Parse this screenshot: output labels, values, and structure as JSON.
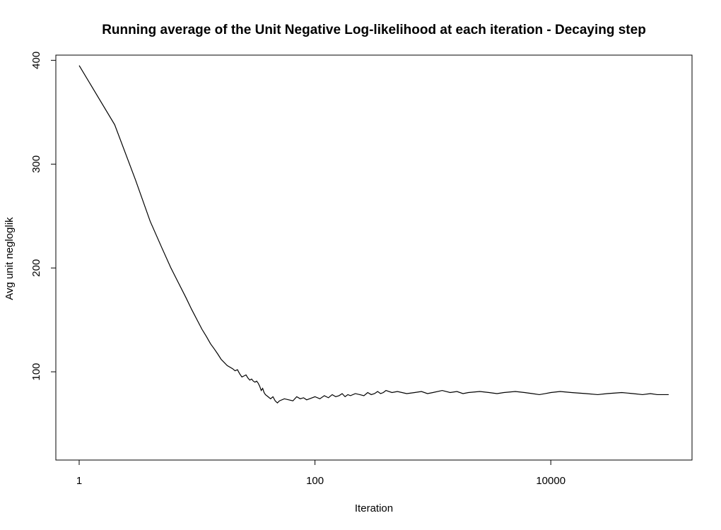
{
  "chart_data": {
    "type": "line",
    "title": "Running average of the Unit Negative Log-likelihood at each iteration - Decaying step",
    "xlabel": "Iteration",
    "ylabel": "Avg unit negloglik",
    "x_scale": "log",
    "xlim": [
      1,
      100000
    ],
    "ylim": [
      15,
      405
    ],
    "x_ticks": [
      1,
      100,
      10000
    ],
    "x_tick_labels": [
      "1",
      "100",
      "10000"
    ],
    "y_ticks": [
      100,
      200,
      300,
      400
    ],
    "y_tick_labels": [
      "100",
      "200",
      "300",
      "400"
    ],
    "grid": false,
    "legend": "none",
    "line_color": "#000000",
    "series": [
      {
        "x": [
          1,
          2,
          3,
          4,
          5,
          6,
          7,
          8,
          9,
          10,
          11,
          12,
          13,
          14,
          15,
          16,
          18,
          20,
          21,
          22,
          23,
          24,
          25,
          26,
          27,
          28,
          29,
          30,
          31,
          32,
          33,
          34,
          35,
          36,
          37,
          38,
          40,
          42,
          44,
          46,
          48,
          50,
          55,
          60,
          65,
          70,
          75,
          80,
          85,
          90,
          95,
          100,
          110,
          120,
          130,
          140,
          150,
          160,
          170,
          180,
          190,
          200,
          220,
          240,
          260,
          280,
          300,
          320,
          340,
          360,
          380,
          400,
          450,
          500,
          600,
          700,
          800,
          900,
          1000,
          1200,
          1400,
          1600,
          1800,
          2000,
          2500,
          3000,
          3500,
          4000,
          5000,
          6000,
          7000,
          8000,
          9000,
          10000,
          12000,
          15000,
          20000,
          25000,
          30000,
          40000,
          50000,
          60000,
          70000,
          80000,
          90000,
          100000
        ],
        "values": [
          395,
          338,
          285,
          245,
          220,
          200,
          185,
          172,
          160,
          150,
          141,
          134,
          127,
          122,
          117,
          112,
          106,
          103,
          101,
          102,
          98,
          95,
          96,
          97,
          94,
          92,
          93,
          91,
          90,
          91,
          89,
          86,
          82,
          84,
          80,
          78,
          76,
          74,
          76,
          72,
          70,
          72,
          74,
          73,
          72,
          76,
          74,
          75,
          73,
          74,
          75,
          76,
          74,
          77,
          75,
          78,
          76,
          77,
          79,
          76,
          78,
          77,
          79,
          78,
          77,
          80,
          78,
          79,
          81,
          79,
          80,
          82,
          80,
          81,
          79,
          80,
          81,
          79,
          80,
          82,
          80,
          81,
          79,
          80,
          81,
          80,
          79,
          80,
          81,
          80,
          79,
          78,
          79,
          80,
          81,
          80,
          79,
          78,
          79,
          80,
          79,
          78,
          79,
          78,
          78,
          78
        ],
        "name": ""
      }
    ]
  }
}
